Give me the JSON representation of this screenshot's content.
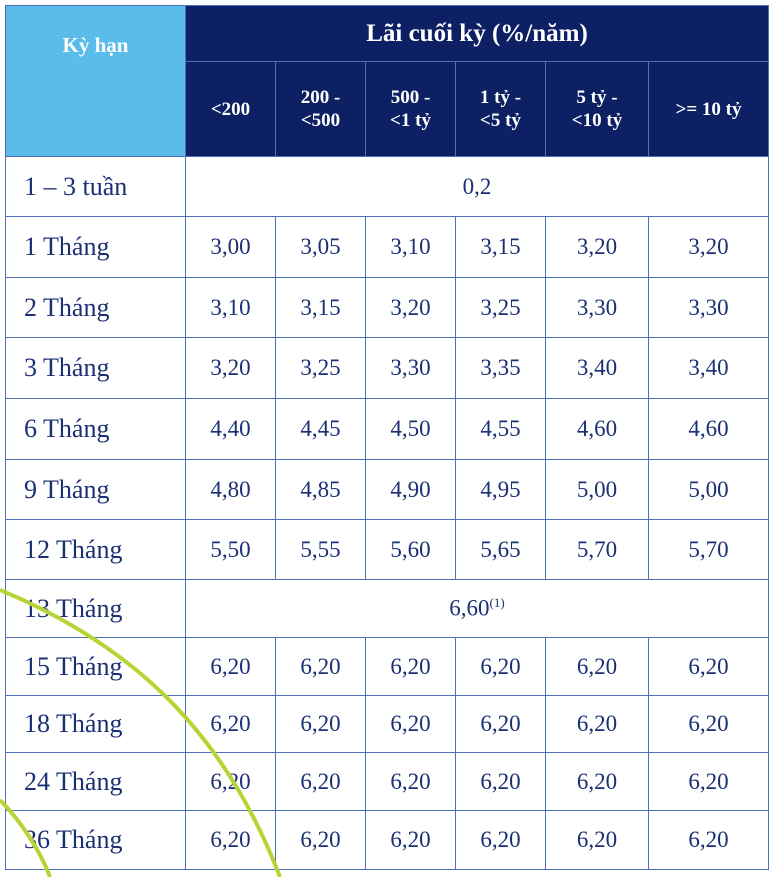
{
  "header": {
    "term_label": "Kỳ hạn",
    "group_label": "Lãi cuối kỳ (%/năm)",
    "columns": [
      [
        "<200"
      ],
      [
        "200 -",
        "<500"
      ],
      [
        "500 -",
        "<1 tỷ"
      ],
      [
        "1 tỷ -",
        "<5 tỷ"
      ],
      [
        "5 tỷ -",
        "<10 tỷ"
      ],
      [
        ">= 10 tỷ"
      ]
    ]
  },
  "table": {
    "rows": [
      {
        "label": "1 – 3 tuần",
        "merged": "0,2"
      },
      {
        "label": "1 Tháng",
        "values": [
          "3,00",
          "3,05",
          "3,10",
          "3,15",
          "3,20",
          "3,20"
        ]
      },
      {
        "label": "2 Tháng",
        "values": [
          "3,10",
          "3,15",
          "3,20",
          "3,25",
          "3,30",
          "3,30"
        ]
      },
      {
        "label": "3 Tháng",
        "values": [
          "3,20",
          "3,25",
          "3,30",
          "3,35",
          "3,40",
          "3,40"
        ]
      },
      {
        "label": "6 Tháng",
        "values": [
          "4,40",
          "4,45",
          "4,50",
          "4,55",
          "4,60",
          "4,60"
        ]
      },
      {
        "label": "9 Tháng",
        "values": [
          "4,80",
          "4,85",
          "4,90",
          "4,95",
          "5,00",
          "5,00"
        ]
      },
      {
        "label": "12 Tháng",
        "values": [
          "5,50",
          "5,55",
          "5,60",
          "5,65",
          "5,70",
          "5,70"
        ]
      },
      {
        "label": "13 Tháng",
        "merged": "6,60",
        "note": "(1)"
      },
      {
        "label": "15 Tháng",
        "values": [
          "6,20",
          "6,20",
          "6,20",
          "6,20",
          "6,20",
          "6,20"
        ]
      },
      {
        "label": "18 Tháng",
        "values": [
          "6,20",
          "6,20",
          "6,20",
          "6,20",
          "6,20",
          "6,20"
        ]
      },
      {
        "label": "24 Tháng",
        "values": [
          "6,20",
          "6,20",
          "6,20",
          "6,20",
          "6,20",
          "6,20"
        ]
      },
      {
        "label": "36 Tháng",
        "values": [
          "6,20",
          "6,20",
          "6,20",
          "6,20",
          "6,20",
          "6,20"
        ]
      }
    ]
  }
}
